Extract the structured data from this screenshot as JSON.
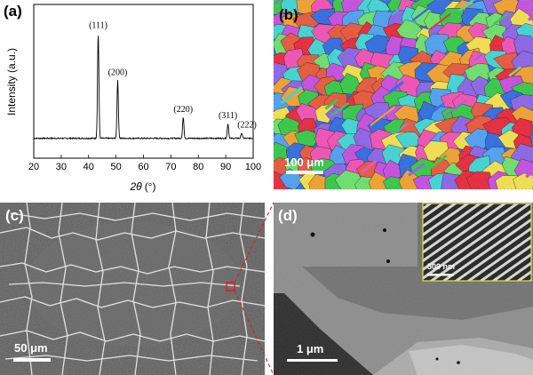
{
  "panels": {
    "a": {
      "label": "(a)",
      "ylabel": "Intensity (a.u.)",
      "xlabel_symbol": "2θ",
      "xlabel_unit": "(°)",
      "xticks": [
        "20",
        "30",
        "40",
        "50",
        "60",
        "70",
        "80",
        "90",
        "100"
      ],
      "peak_labels": [
        "(111)",
        "(200)",
        "(220)",
        "(311)",
        "(222)"
      ]
    },
    "b": {
      "label": "(b)",
      "scale_bar": "100 μm"
    },
    "c": {
      "label": "(c)",
      "scale_bar": "50 μm"
    },
    "d": {
      "label": "(d)",
      "scale_bar": "1 μm",
      "inset_scale_bar": "500 nm"
    }
  },
  "colors": {
    "zoom_marker": "#d42020",
    "inset_border": "#d8d84a",
    "ebsd_palette": [
      "#e8263a",
      "#2f6be0",
      "#33c846",
      "#c64ce0",
      "#f0a02c",
      "#3fd4d4",
      "#f24fb4",
      "#8a63e8",
      "#f2e04c",
      "#6be06b",
      "#e8563a",
      "#4ca0f2"
    ]
  },
  "chart_data": {
    "type": "line",
    "title": "",
    "xlabel": "2θ (°)",
    "ylabel": "Intensity (a.u.)",
    "xlim": [
      20,
      100
    ],
    "ylim": [
      0,
      1
    ],
    "grid": false,
    "series": [
      {
        "peaks": [
          {
            "x": 43.5,
            "y": 1.0,
            "label": "(111)"
          },
          {
            "x": 50.6,
            "y": 0.55,
            "label": "(200)"
          },
          {
            "x": 74.5,
            "y": 0.2,
            "label": "(220)"
          },
          {
            "x": 90.8,
            "y": 0.14,
            "label": "(311)"
          },
          {
            "x": 95.8,
            "y": 0.05,
            "label": "(222)"
          }
        ],
        "baseline": 0.02
      }
    ]
  }
}
